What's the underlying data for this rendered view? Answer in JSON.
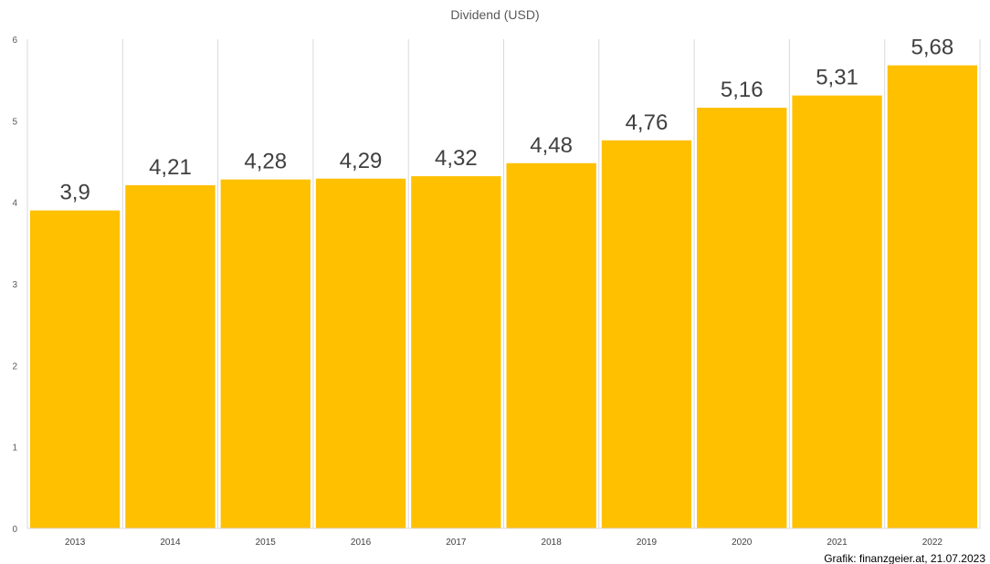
{
  "chart_data": {
    "type": "bar",
    "title": "Dividend (USD)",
    "categories": [
      "2013",
      "2014",
      "2015",
      "2016",
      "2017",
      "2018",
      "2019",
      "2020",
      "2021",
      "2022"
    ],
    "values": [
      3.9,
      4.21,
      4.28,
      4.29,
      4.32,
      4.48,
      4.76,
      5.16,
      5.31,
      5.68
    ],
    "value_labels": [
      "3,9",
      "4,21",
      "4,28",
      "4,29",
      "4,32",
      "4,48",
      "4,76",
      "5,16",
      "5,31",
      "5,68"
    ],
    "y_ticks": [
      "0",
      "1",
      "2",
      "3",
      "4",
      "5",
      "6"
    ],
    "ylim": [
      0,
      6
    ],
    "xlabel": "",
    "ylabel": "",
    "grid": "vertical category separators",
    "legend": "none",
    "bar_color": "#FFC000",
    "gridline_color": "#D9D9D9"
  },
  "credit": "Grafik: finanzgeier.at, 21.07.2023"
}
